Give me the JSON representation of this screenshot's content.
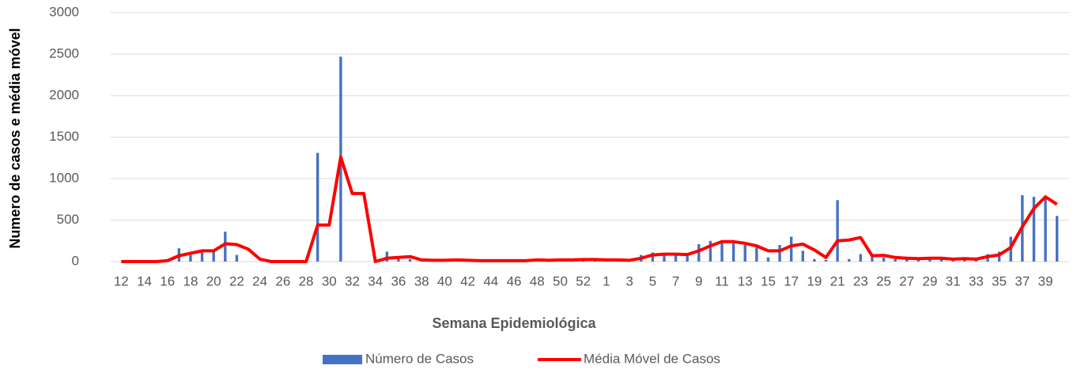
{
  "chart_data": {
    "type": "bar_line",
    "xlabel": "Semana Epidemiológica",
    "ylabel": "Numero de casos e média móvel",
    "categories": [
      "12",
      null,
      "14",
      null,
      "16",
      null,
      "18",
      null,
      "20",
      null,
      "22",
      null,
      "24",
      null,
      "26",
      null,
      "28",
      null,
      "30",
      null,
      "32",
      null,
      "34",
      null,
      "36",
      null,
      "38",
      null,
      "40",
      null,
      "42",
      null,
      "44",
      null,
      "46",
      null,
      "48",
      null,
      "50",
      null,
      "52",
      null,
      "1",
      null,
      "3",
      null,
      "5",
      null,
      "7",
      null,
      "9",
      null,
      "11",
      null,
      "13",
      null,
      "15",
      null,
      "17",
      null,
      "19",
      null,
      "21",
      null,
      "23",
      null,
      "25",
      null,
      "27",
      null,
      "29",
      null,
      "31",
      null,
      "33",
      null,
      "35",
      null,
      "37",
      null,
      "39",
      null
    ],
    "series": [
      {
        "name": "Número de Casos",
        "color": "#4472c4",
        "kind": "bar",
        "values": [
          0,
          0,
          0,
          0,
          0,
          160,
          80,
          120,
          130,
          360,
          80,
          0,
          0,
          0,
          0,
          0,
          0,
          1310,
          0,
          2470,
          0,
          0,
          0,
          120,
          40,
          30,
          10,
          10,
          10,
          15,
          10,
          10,
          10,
          10,
          15,
          20,
          15,
          20,
          20,
          25,
          25,
          20,
          20,
          20,
          15,
          80,
          110,
          90,
          90,
          80,
          210,
          250,
          240,
          240,
          200,
          170,
          50,
          200,
          300,
          130,
          30,
          20,
          740,
          30,
          90,
          80,
          50,
          30,
          30,
          30,
          40,
          30,
          30,
          30,
          40,
          90,
          120,
          300,
          800,
          780,
          760,
          550
        ]
      },
      {
        "name": "Média Móvel de Casos",
        "color": "#ff0000",
        "kind": "line",
        "values": [
          0,
          0,
          0,
          0,
          10,
          70,
          100,
          130,
          130,
          215,
          205,
          150,
          30,
          0,
          0,
          0,
          0,
          440,
          440,
          1260,
          820,
          820,
          0,
          40,
          50,
          60,
          20,
          15,
          15,
          20,
          15,
          10,
          10,
          10,
          10,
          10,
          20,
          15,
          20,
          20,
          25,
          25,
          20,
          20,
          15,
          40,
          80,
          90,
          90,
          85,
          130,
          190,
          240,
          240,
          220,
          190,
          130,
          130,
          190,
          210,
          140,
          50,
          250,
          260,
          290,
          70,
          75,
          50,
          40,
          35,
          40,
          40,
          30,
          35,
          30,
          60,
          80,
          170,
          420,
          640,
          780,
          690
        ]
      }
    ],
    "ylim": [
      0,
      3000
    ],
    "yticks": [
      0,
      500,
      1000,
      1500,
      2000,
      2500,
      3000
    ],
    "grid": true
  }
}
